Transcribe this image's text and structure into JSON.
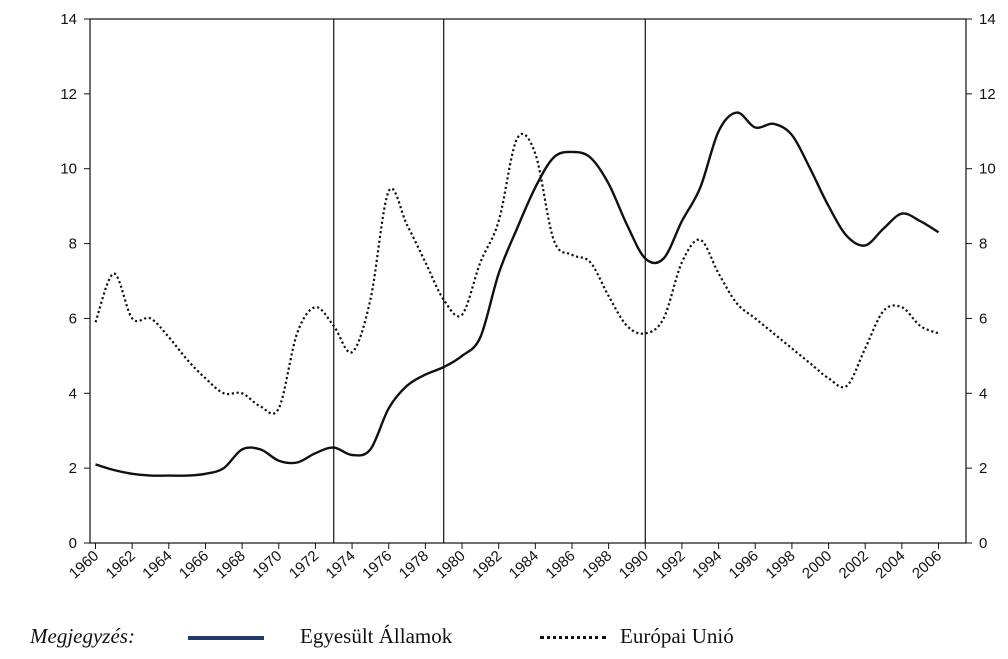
{
  "chart_data": {
    "type": "line",
    "x_ticks": [
      1960,
      1962,
      1964,
      1966,
      1968,
      1970,
      1972,
      1974,
      1976,
      1978,
      1980,
      1982,
      1984,
      1986,
      1988,
      1990,
      1992,
      1994,
      1996,
      1998,
      2000,
      2002,
      2004,
      2006
    ],
    "y_ticks": [
      0,
      2,
      4,
      6,
      8,
      10,
      12,
      14
    ],
    "xlim": [
      1959.7,
      2007.5
    ],
    "ylim": [
      0,
      14
    ],
    "grid": false,
    "vertical_markers": [
      1973,
      1979,
      1990
    ],
    "series": [
      {
        "name": "Egyesült Államok",
        "style": "solid",
        "color": "#111111",
        "legend_color": "#1f3a6b",
        "x": [
          1960,
          1961,
          1962,
          1963,
          1964,
          1965,
          1966,
          1967,
          1968,
          1969,
          1970,
          1971,
          1972,
          1973,
          1974,
          1975,
          1976,
          1977,
          1978,
          1979,
          1980,
          1981,
          1982,
          1983,
          1984,
          1985,
          1986,
          1987,
          1988,
          1989,
          1990,
          1991,
          1992,
          1993,
          1994,
          1995,
          1996,
          1997,
          1998,
          1999,
          2000,
          2001,
          2002,
          2003,
          2004,
          2005,
          2006
        ],
        "values": [
          2.1,
          1.95,
          1.85,
          1.8,
          1.8,
          1.8,
          1.85,
          2.0,
          2.5,
          2.5,
          2.2,
          2.15,
          2.4,
          2.55,
          2.35,
          2.5,
          3.6,
          4.2,
          4.5,
          4.7,
          5.0,
          5.5,
          7.2,
          8.4,
          9.5,
          10.3,
          10.45,
          10.3,
          9.6,
          8.5,
          7.6,
          7.6,
          8.6,
          9.5,
          11.0,
          11.5,
          11.1,
          11.2,
          10.9,
          10.0,
          9.0,
          8.2,
          7.95,
          8.4,
          8.8,
          8.6,
          8.3
        ]
      },
      {
        "name": "Európai Unió",
        "style": "dotted",
        "color": "#111111",
        "x": [
          1960,
          1961,
          1962,
          1963,
          1964,
          1965,
          1966,
          1967,
          1968,
          1969,
          1970,
          1971,
          1972,
          1973,
          1974,
          1975,
          1976,
          1977,
          1978,
          1979,
          1980,
          1981,
          1982,
          1983,
          1984,
          1985,
          1986,
          1987,
          1988,
          1989,
          1990,
          1991,
          1992,
          1993,
          1994,
          1995,
          1996,
          1997,
          1998,
          1999,
          2000,
          2001,
          2002,
          2003,
          2004,
          2005,
          2006
        ],
        "values": [
          5.9,
          7.2,
          6.0,
          6.0,
          5.5,
          4.9,
          4.4,
          4.0,
          4.0,
          3.65,
          3.6,
          5.6,
          6.3,
          5.8,
          5.1,
          6.5,
          9.4,
          8.5,
          7.5,
          6.5,
          6.1,
          7.5,
          8.6,
          10.8,
          10.4,
          8.1,
          7.7,
          7.5,
          6.6,
          5.8,
          5.6,
          6.0,
          7.5,
          8.1,
          7.2,
          6.4,
          6.0,
          5.6,
          5.2,
          4.8,
          4.4,
          4.2,
          5.2,
          6.2,
          6.3,
          5.8,
          5.6
        ]
      }
    ]
  },
  "legend": {
    "note": "Megjegyzés:",
    "us_label": "Egyesült Államok",
    "eu_label": "Európai Unió"
  }
}
